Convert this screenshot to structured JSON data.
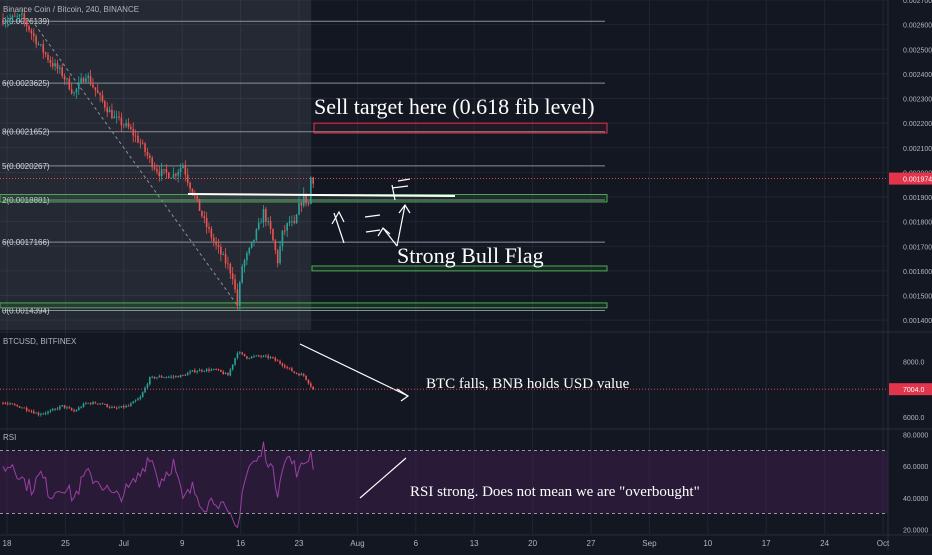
{
  "header": {
    "title": "Binance Coin / Bitcoin, 240, BINANCE"
  },
  "colors": {
    "background": "#131722",
    "grid": "#1f2533",
    "axis_text": "#b2b5be",
    "up": "#26a69a",
    "down": "#ef5350",
    "fib": "#8a8f99",
    "zone_green": "#4caf50",
    "zone_red": "#e2344b",
    "rsi": "#9c3fa3",
    "rsi_band": "#3d1f4a",
    "annotation": "#ffffff"
  },
  "chart_data": [
    {
      "name": "main",
      "type": "candlestick",
      "pair": "BNB/BTC",
      "title": "Binance Coin / Bitcoin, 240, BINANCE",
      "ylim": [
        0.00136,
        0.0027
      ],
      "y_ticks": [
        "0.0027000",
        "0.0026000",
        "0.0025000",
        "0.0024000",
        "0.0023000",
        "0.0022000",
        "0.0021000",
        "0.0020000",
        "0.0019000",
        "0.0018000",
        "0.0017000",
        "0.0016000",
        "0.0015000",
        "0.0014000"
      ],
      "last_price_label": "0.0019749",
      "last_price": 0.0019749,
      "price_path": [
        [
          0,
          0.00262
        ],
        [
          8,
          0.00263
        ],
        [
          15,
          0.00252
        ],
        [
          20,
          0.00245
        ],
        [
          25,
          0.0024
        ],
        [
          30,
          0.00232
        ],
        [
          35,
          0.0024
        ],
        [
          41,
          0.0023
        ],
        [
          47,
          0.00222
        ],
        [
          53,
          0.00218
        ],
        [
          58,
          0.00212
        ],
        [
          62,
          0.00205
        ],
        [
          66,
          0.002
        ],
        [
          72,
          0.00199
        ],
        [
          76,
          0.00203
        ],
        [
          78,
          0.00197
        ],
        [
          81,
          0.0019
        ],
        [
          85,
          0.0018
        ],
        [
          90,
          0.0017
        ],
        [
          95,
          0.00162
        ],
        [
          97,
          0.00158
        ],
        [
          99,
          0.00146
        ],
        [
          101,
          0.00162
        ],
        [
          104,
          0.00168
        ],
        [
          108,
          0.00178
        ],
        [
          110,
          0.00184
        ],
        [
          113,
          0.00176
        ],
        [
          116,
          0.00164
        ],
        [
          118,
          0.00175
        ],
        [
          121,
          0.0018
        ],
        [
          123,
          0.00178
        ],
        [
          125,
          0.00186
        ],
        [
          127,
          0.0019
        ],
        [
          129,
          0.00187
        ],
        [
          130,
          0.00198
        ],
        [
          131,
          0.00197
        ]
      ],
      "fib_levels": [
        {
          "label": "0(0.0026139)",
          "value": 0.0026139
        },
        {
          "label": "6(0.0023625)",
          "value": 0.0023625
        },
        {
          "label": "8(0.0021652)",
          "value": 0.0021652
        },
        {
          "label": "5(0.0020267)",
          "value": 0.0020267
        },
        {
          "label": "2(0.0018881)",
          "value": 0.0018881
        },
        {
          "label": "6(0.0017166)",
          "value": 0.0017166
        },
        {
          "label": "0(0.0014394)",
          "value": 0.0014394
        }
      ],
      "zones": [
        {
          "color": "red",
          "low": 0.00216,
          "high": 0.0022
        },
        {
          "color": "green",
          "low": 0.00188,
          "high": 0.00191
        },
        {
          "color": "green",
          "low": 0.0016,
          "high": 0.00162
        },
        {
          "color": "green",
          "low": 0.00145,
          "high": 0.00147
        }
      ],
      "annotations": [
        "Sell target here (0.618 fib level)",
        "Strong Bull Flag"
      ]
    },
    {
      "name": "btcusd",
      "type": "candlestick",
      "title": "BTCUSD, BITFINEX",
      "ylim": [
        5600,
        9000
      ],
      "y_ticks": [
        "8000.0",
        "7000.0",
        "6000.0"
      ],
      "last_price_label": "7004.0",
      "last_price": 7004.0,
      "price_path": [
        [
          0,
          6500
        ],
        [
          8,
          6350
        ],
        [
          15,
          6100
        ],
        [
          20,
          6200
        ],
        [
          25,
          6400
        ],
        [
          30,
          6200
        ],
        [
          35,
          6500
        ],
        [
          41,
          6500
        ],
        [
          47,
          6300
        ],
        [
          53,
          6400
        ],
        [
          58,
          6700
        ],
        [
          62,
          7400
        ],
        [
          66,
          7450
        ],
        [
          72,
          7450
        ],
        [
          76,
          7500
        ],
        [
          80,
          7650
        ],
        [
          85,
          7700
        ],
        [
          90,
          7700
        ],
        [
          95,
          7500
        ],
        [
          99,
          8350
        ],
        [
          103,
          8150
        ],
        [
          108,
          8200
        ],
        [
          113,
          8150
        ],
        [
          118,
          7900
        ],
        [
          123,
          7600
        ],
        [
          127,
          7500
        ],
        [
          131,
          7000
        ]
      ],
      "annotations": [
        "BTC falls, BNB holds USD value"
      ]
    },
    {
      "name": "rsi",
      "type": "line",
      "title": "RSI",
      "ylim": [
        17,
        83
      ],
      "y_ticks": [
        "80.0000",
        "60.0000",
        "40.0000",
        "20.0000"
      ],
      "bands": [
        30,
        70
      ],
      "values": [
        [
          0,
          58
        ],
        [
          4,
          62
        ],
        [
          8,
          52
        ],
        [
          12,
          46
        ],
        [
          16,
          55
        ],
        [
          20,
          42
        ],
        [
          25,
          48
        ],
        [
          30,
          40
        ],
        [
          35,
          55
        ],
        [
          41,
          50
        ],
        [
          47,
          40
        ],
        [
          53,
          45
        ],
        [
          58,
          55
        ],
        [
          62,
          68
        ],
        [
          66,
          50
        ],
        [
          72,
          62
        ],
        [
          76,
          38
        ],
        [
          80,
          46
        ],
        [
          85,
          35
        ],
        [
          90,
          40
        ],
        [
          95,
          28
        ],
        [
          99,
          20
        ],
        [
          101,
          45
        ],
        [
          104,
          60
        ],
        [
          108,
          64
        ],
        [
          110,
          72
        ],
        [
          113,
          60
        ],
        [
          116,
          45
        ],
        [
          118,
          62
        ],
        [
          121,
          65
        ],
        [
          125,
          55
        ],
        [
          127,
          62
        ],
        [
          130,
          68
        ],
        [
          131,
          62
        ]
      ],
      "annotations": [
        "RSI strong. Does not mean we are \"overbought\""
      ]
    }
  ],
  "x_axis": {
    "ticks": [
      "18",
      "25",
      "Jul",
      "9",
      "16",
      "23",
      "Aug",
      "6",
      "13",
      "20",
      "27",
      "Sep",
      "10",
      "17",
      "24",
      "Oct"
    ]
  }
}
